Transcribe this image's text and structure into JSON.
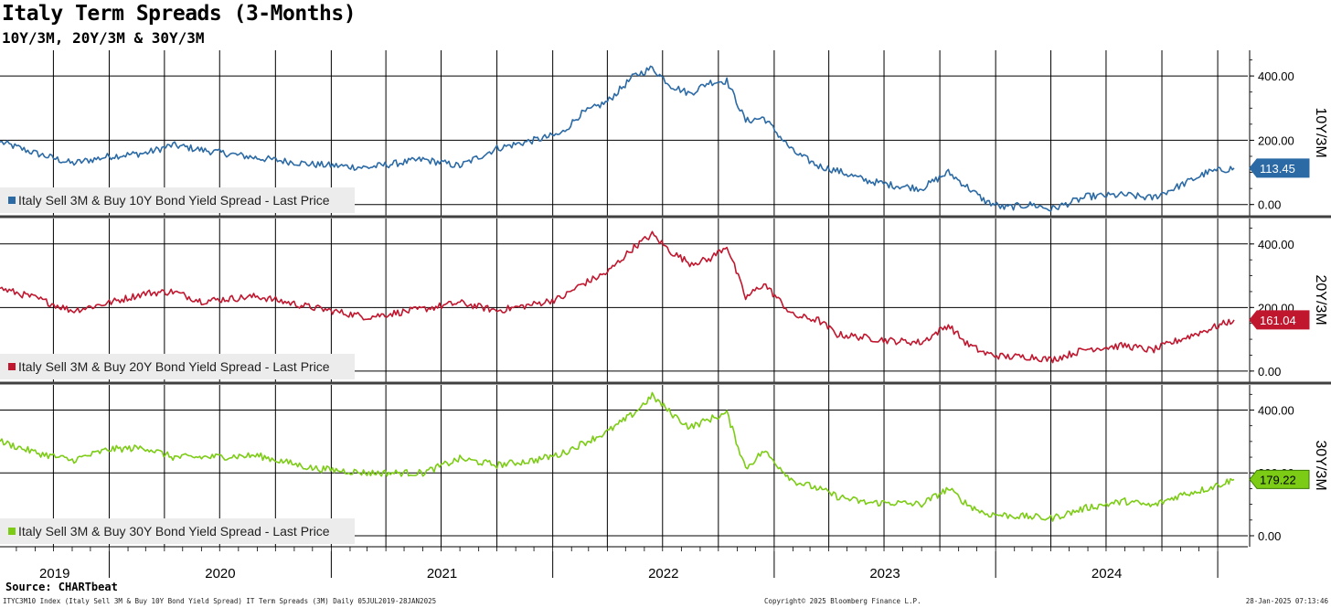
{
  "title": "Italy Term Spreads (3-Months)",
  "subtitle": "10Y/3M, 20Y/3M & 30Y/3M",
  "source": "Source: CHARTbeat",
  "footer": {
    "left": "ITYC3M10 Index (Italy Sell 3M & Buy 10Y Bond Yield Spread) IT Term Spreads (3M)  Daily 05JUL2019-28JAN2025",
    "center": "Copyright© 2025 Bloomberg Finance L.P.",
    "right": "28-Jan-2025 07:13:46"
  },
  "x_axis": {
    "year_labels": [
      "2019",
      "2020",
      "2021",
      "2022",
      "2023",
      "2024"
    ],
    "range": [
      "2019-07-05",
      "2025-01-28"
    ]
  },
  "colors": {
    "10Y/3M": "#2b6aa5",
    "20Y/3M": "#c0172f",
    "30Y/3M": "#7ccc15",
    "grid": "#000000",
    "panel_divider": "#404040",
    "legend_bg": "#ececec"
  },
  "chart_data": [
    {
      "type": "line",
      "panel_label": "10Y/3M",
      "ylim": [
        -35,
        480
      ],
      "yticks": [
        "400.00",
        "200.00",
        "0.00"
      ],
      "grid": true,
      "legend_position": "bottom-left",
      "last_value": "113.45",
      "series": [
        {
          "name": "Italy Sell 3M & Buy 10Y Bond Yield Spread - Last Price",
          "points": [
            [
              "2019-07-05",
              195
            ],
            [
              "2019-09-01",
              160
            ],
            [
              "2019-11-01",
              128
            ],
            [
              "2020-01-01",
              150
            ],
            [
              "2020-03-01",
              160
            ],
            [
              "2020-04-15",
              185
            ],
            [
              "2020-06-01",
              170
            ],
            [
              "2020-09-01",
              145
            ],
            [
              "2020-12-01",
              125
            ],
            [
              "2021-03-01",
              115
            ],
            [
              "2021-06-01",
              140
            ],
            [
              "2021-08-01",
              120
            ],
            [
              "2021-10-01",
              175
            ],
            [
              "2021-12-01",
              200
            ],
            [
              "2022-01-15",
              220
            ],
            [
              "2022-02-15",
              280
            ],
            [
              "2022-04-01",
              320
            ],
            [
              "2022-05-15",
              400
            ],
            [
              "2022-06-14",
              425
            ],
            [
              "2022-07-15",
              370
            ],
            [
              "2022-08-15",
              345
            ],
            [
              "2022-09-15",
              380
            ],
            [
              "2022-10-15",
              385
            ],
            [
              "2022-11-15",
              260
            ],
            [
              "2022-12-15",
              270
            ],
            [
              "2023-02-01",
              165
            ],
            [
              "2023-03-15",
              120
            ],
            [
              "2023-04-15",
              105
            ],
            [
              "2023-06-01",
              75
            ],
            [
              "2023-07-15",
              60
            ],
            [
              "2023-09-01",
              50
            ],
            [
              "2023-10-15",
              100
            ],
            [
              "2023-11-15",
              55
            ],
            [
              "2023-12-15",
              10
            ],
            [
              "2024-01-15",
              -10
            ],
            [
              "2024-03-01",
              0
            ],
            [
              "2024-04-01",
              -15
            ],
            [
              "2024-06-01",
              25
            ],
            [
              "2024-08-01",
              30
            ],
            [
              "2024-09-15",
              20
            ],
            [
              "2024-11-01",
              60
            ],
            [
              "2024-12-15",
              100
            ],
            [
              "2025-01-28",
              113.45
            ]
          ]
        }
      ]
    },
    {
      "type": "line",
      "panel_label": "20Y/3M",
      "ylim": [
        -35,
        480
      ],
      "yticks": [
        "400.00",
        "200.00",
        "0.00"
      ],
      "grid": true,
      "legend_position": "bottom-left",
      "last_value": "161.04",
      "series": [
        {
          "name": "Italy Sell 3M & Buy 20Y Bond Yield Spread - Last Price",
          "points": [
            [
              "2019-07-05",
              260
            ],
            [
              "2019-09-01",
              230
            ],
            [
              "2019-11-01",
              190
            ],
            [
              "2020-01-01",
              215
            ],
            [
              "2020-03-01",
              245
            ],
            [
              "2020-04-15",
              250
            ],
            [
              "2020-06-01",
              220
            ],
            [
              "2020-09-01",
              235
            ],
            [
              "2020-12-01",
              200
            ],
            [
              "2021-03-01",
              170
            ],
            [
              "2021-06-01",
              195
            ],
            [
              "2021-08-01",
              215
            ],
            [
              "2021-10-01",
              190
            ],
            [
              "2021-12-01",
              210
            ],
            [
              "2022-01-15",
              230
            ],
            [
              "2022-02-15",
              270
            ],
            [
              "2022-04-01",
              310
            ],
            [
              "2022-05-15",
              390
            ],
            [
              "2022-06-14",
              430
            ],
            [
              "2022-07-15",
              375
            ],
            [
              "2022-08-15",
              340
            ],
            [
              "2022-09-15",
              350
            ],
            [
              "2022-10-15",
              395
            ],
            [
              "2022-11-15",
              230
            ],
            [
              "2022-12-15",
              275
            ],
            [
              "2023-02-01",
              175
            ],
            [
              "2023-03-15",
              160
            ],
            [
              "2023-04-15",
              115
            ],
            [
              "2023-06-01",
              105
            ],
            [
              "2023-07-15",
              95
            ],
            [
              "2023-09-01",
              90
            ],
            [
              "2023-10-15",
              145
            ],
            [
              "2023-11-15",
              85
            ],
            [
              "2023-12-15",
              55
            ],
            [
              "2024-01-15",
              45
            ],
            [
              "2024-03-01",
              45
            ],
            [
              "2024-04-01",
              35
            ],
            [
              "2024-06-01",
              70
            ],
            [
              "2024-08-01",
              80
            ],
            [
              "2024-09-15",
              65
            ],
            [
              "2024-11-01",
              100
            ],
            [
              "2024-12-15",
              130
            ],
            [
              "2025-01-28",
              161.04
            ]
          ]
        }
      ]
    },
    {
      "type": "line",
      "panel_label": "30Y/3M",
      "ylim": [
        -35,
        480
      ],
      "yticks": [
        "400.00",
        "200.00",
        "0.00"
      ],
      "grid": true,
      "legend_position": "bottom-left",
      "last_value": "179.22",
      "series": [
        {
          "name": "Italy Sell 3M & Buy 30Y Bond Yield Spread - Last Price",
          "points": [
            [
              "2019-07-05",
              300
            ],
            [
              "2019-09-01",
              265
            ],
            [
              "2019-11-01",
              240
            ],
            [
              "2020-01-01",
              275
            ],
            [
              "2020-03-01",
              280
            ],
            [
              "2020-04-15",
              250
            ],
            [
              "2020-06-01",
              250
            ],
            [
              "2020-09-01",
              255
            ],
            [
              "2020-12-01",
              215
            ],
            [
              "2021-03-01",
              200
            ],
            [
              "2021-06-01",
              200
            ],
            [
              "2021-08-01",
              245
            ],
            [
              "2021-10-01",
              225
            ],
            [
              "2021-12-01",
              240
            ],
            [
              "2022-01-15",
              260
            ],
            [
              "2022-02-15",
              290
            ],
            [
              "2022-04-01",
              330
            ],
            [
              "2022-05-15",
              390
            ],
            [
              "2022-06-14",
              445
            ],
            [
              "2022-07-15",
              390
            ],
            [
              "2022-08-15",
              345
            ],
            [
              "2022-09-15",
              370
            ],
            [
              "2022-10-15",
              390
            ],
            [
              "2022-11-15",
              215
            ],
            [
              "2022-12-15",
              270
            ],
            [
              "2023-02-01",
              175
            ],
            [
              "2023-03-15",
              150
            ],
            [
              "2023-04-15",
              125
            ],
            [
              "2023-06-01",
              105
            ],
            [
              "2023-07-15",
              105
            ],
            [
              "2023-09-01",
              100
            ],
            [
              "2023-10-15",
              150
            ],
            [
              "2023-11-15",
              100
            ],
            [
              "2023-12-15",
              70
            ],
            [
              "2024-01-15",
              65
            ],
            [
              "2024-03-01",
              60
            ],
            [
              "2024-04-01",
              55
            ],
            [
              "2024-06-01",
              90
            ],
            [
              "2024-08-01",
              110
            ],
            [
              "2024-09-15",
              95
            ],
            [
              "2024-11-01",
              130
            ],
            [
              "2024-12-15",
              150
            ],
            [
              "2025-01-28",
              179.22
            ]
          ]
        }
      ]
    }
  ]
}
